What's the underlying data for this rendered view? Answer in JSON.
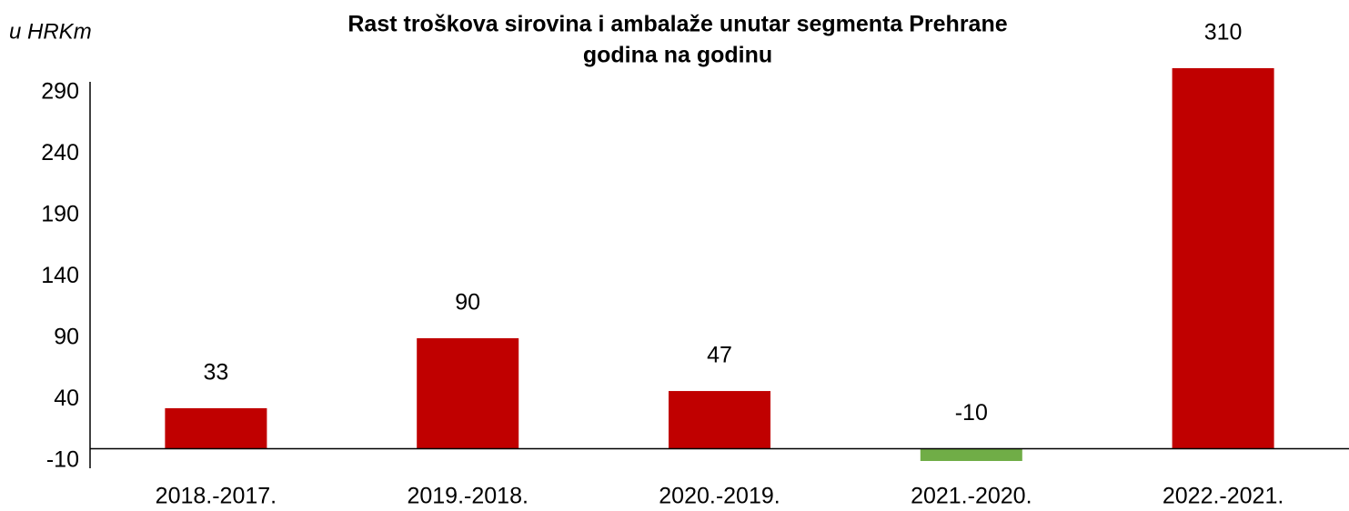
{
  "chart_data": {
    "type": "bar",
    "title": [
      "Rast troškova sirovina i ambalaže unutar segmenta Prehrane",
      "godina na godinu"
    ],
    "y_label": "u HRKm",
    "categories": [
      "2018.-2017.",
      "2019.-2018.",
      "2020.-2019.",
      "2021.-2020.",
      "2022.-2021."
    ],
    "values": [
      33,
      90,
      47,
      -10,
      310
    ],
    "colors": [
      "#c00000",
      "#c00000",
      "#c00000",
      "#70ad47",
      "#c00000"
    ],
    "ylim": [
      -10,
      310
    ],
    "yticks": [
      -10,
      40,
      90,
      140,
      190,
      240,
      290
    ],
    "grid": false
  }
}
